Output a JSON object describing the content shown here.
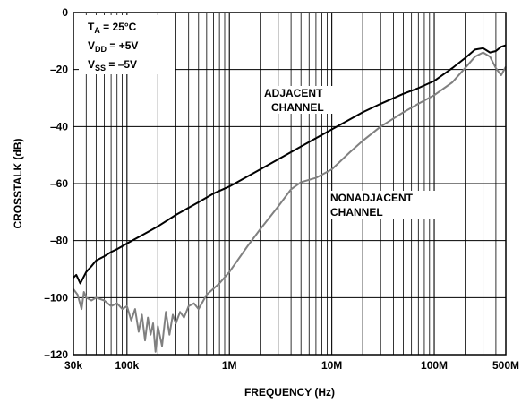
{
  "chart_data": {
    "type": "line",
    "title": "",
    "xlabel": "FREQUENCY (Hz)",
    "ylabel": "CROSSTALK (dB)",
    "x_scale": "log",
    "xlim": [
      30000,
      500000000
    ],
    "ylim": [
      -120,
      0
    ],
    "x_ticks": [
      {
        "value": 30000,
        "label": "30k"
      },
      {
        "value": 100000,
        "label": "100k"
      },
      {
        "value": 1000000,
        "label": "1M"
      },
      {
        "value": 10000000,
        "label": "10M"
      },
      {
        "value": 100000000,
        "label": "100M"
      },
      {
        "value": 500000000,
        "label": "500M"
      }
    ],
    "y_ticks": [
      {
        "value": 0,
        "label": "0"
      },
      {
        "value": -20,
        "label": "–20"
      },
      {
        "value": -40,
        "label": "–40"
      },
      {
        "value": -60,
        "label": "–60"
      },
      {
        "value": -80,
        "label": "–80"
      },
      {
        "value": -100,
        "label": "–100"
      },
      {
        "value": -120,
        "label": "–120"
      }
    ],
    "grid": true,
    "conditions": {
      "ta": {
        "main": "T",
        "sub": "A",
        "rest": " = 25°C"
      },
      "vdd": {
        "main": "V",
        "sub": "DD",
        "rest": " = +5V"
      },
      "vss": {
        "main": "V",
        "sub": "SS",
        "rest": " = –5V"
      }
    },
    "annotations": {
      "adjacent": {
        "line1": "ADJACENT",
        "line2": "CHANNEL"
      },
      "nonadjacent": {
        "line1": "NONADJACENT",
        "line2": "CHANNEL"
      }
    },
    "series": [
      {
        "color": "#000000",
        "x": [
          30000,
          32000,
          35000,
          40000,
          45000,
          50000,
          60000,
          70000,
          80000,
          100000,
          150000,
          200000,
          300000,
          500000,
          700000,
          1000000,
          2000000,
          3000000,
          5000000,
          10000000,
          20000000,
          30000000,
          50000000,
          70000000,
          100000000,
          150000000,
          200000000,
          250000000,
          300000000,
          350000000,
          400000000,
          450000000,
          500000000
        ],
        "y": [
          -93,
          -92,
          -95,
          -91,
          -89,
          -87,
          -85.5,
          -84,
          -83,
          -81,
          -77.5,
          -75,
          -71,
          -66.5,
          -63.5,
          -61,
          -55,
          -51.5,
          -47,
          -41,
          -35,
          -32,
          -28.5,
          -26.5,
          -24,
          -19.5,
          -16,
          -13,
          -12.5,
          -14,
          -13.5,
          -12,
          -11.5
        ]
      },
      {
        "color": "#808080",
        "x": [
          30000,
          33000,
          36000,
          38000,
          40000,
          45000,
          50000,
          60000,
          70000,
          80000,
          90000,
          100000,
          110000,
          120000,
          130000,
          140000,
          150000,
          160000,
          170000,
          180000,
          190000,
          200000,
          220000,
          240000,
          260000,
          280000,
          300000,
          330000,
          360000,
          400000,
          450000,
          500000,
          600000,
          800000,
          1000000,
          1500000,
          2000000,
          3000000,
          4000000,
          5000000,
          7000000,
          10000000,
          15000000,
          20000000,
          30000000,
          50000000,
          70000000,
          100000000,
          150000000,
          200000000,
          250000000,
          300000000,
          350000000,
          400000000,
          450000000,
          500000000
        ],
        "y": [
          -97,
          -99,
          -104,
          -98,
          -100,
          -101,
          -100,
          -101,
          -103,
          -102,
          -104,
          -103,
          -108,
          -104,
          -112,
          -106,
          -115,
          -107,
          -113,
          -109,
          -119,
          -110,
          -117,
          -105,
          -113,
          -106,
          -109,
          -105,
          -107,
          -103,
          -102,
          -104,
          -99,
          -95,
          -91,
          -82,
          -76,
          -68,
          -62,
          -59.5,
          -58,
          -55,
          -49,
          -45,
          -40,
          -35,
          -32,
          -29,
          -24.5,
          -19.5,
          -15.5,
          -14,
          -15.5,
          -19.5,
          -22,
          -19
        ]
      }
    ]
  }
}
